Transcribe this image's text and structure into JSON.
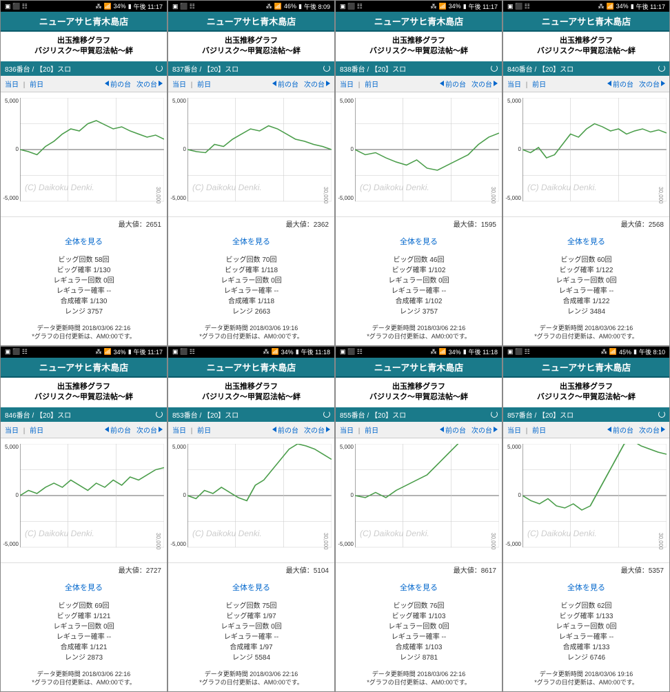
{
  "common": {
    "store_name": "ニューアサヒ青木島店",
    "graph_title": "出玉推移グラフ",
    "game_name": "バジリスク〜甲賀忍法帖〜絆",
    "slot_label": "【20】スロ",
    "today": "当日",
    "yesterday": "前日",
    "prev_machine": "前の台",
    "next_machine": "次の台",
    "max_label": "最大値：",
    "view_all": "全体を見る",
    "big_count_label": "ビッグ回数",
    "big_rate_label": "ビッグ確率",
    "reg_count_label": "レギュラー回数",
    "reg_rate_label": "レギュラー確率",
    "combined_label": "合成確率",
    "range_label": "レンジ",
    "update_label": "データ更新時間",
    "note": "*グラフの日付更新は、AM0:00です。",
    "watermark": "(C) Daikoku Denki.",
    "y_high": "5,000",
    "y_zero": "0",
    "y_low": "-5,000",
    "x_label": "30,000",
    "data_color": "#4a9d4a",
    "grid_color": "#cccccc",
    "axis_color": "#666666"
  },
  "panels": [
    {
      "status_time": "午後 11:17",
      "battery": "34%",
      "machine_no": "836番台",
      "max_value": "2651",
      "big_count": "58回",
      "big_rate": "1/130",
      "reg_count": "0回",
      "reg_rate": "--",
      "combined": "1/130",
      "range": "3757",
      "update_time": "2018/03/06 22:16",
      "chart_data": [
        0,
        -2,
        -5,
        3,
        8,
        15,
        20,
        18,
        25,
        28,
        24,
        20,
        22,
        18,
        15,
        12,
        14,
        10
      ]
    },
    {
      "status_time": "午後 8:09",
      "battery": "46%",
      "machine_no": "837番台",
      "max_value": "2362",
      "big_count": "70回",
      "big_rate": "1/118",
      "reg_count": "0回",
      "reg_rate": "--",
      "combined": "1/118",
      "range": "2663",
      "update_time": "2018/03/06 19:16",
      "chart_data": [
        0,
        -2,
        -3,
        5,
        3,
        10,
        15,
        20,
        18,
        23,
        20,
        15,
        10,
        8,
        5,
        3,
        0
      ]
    },
    {
      "status_time": "午後 11:17",
      "battery": "34%",
      "machine_no": "838番台",
      "max_value": "1595",
      "big_count": "46回",
      "big_rate": "1/102",
      "reg_count": "0回",
      "reg_rate": "--",
      "combined": "1/102",
      "range": "3757",
      "update_time": "2018/03/06 22:16",
      "chart_data": [
        0,
        -5,
        -3,
        -8,
        -12,
        -15,
        -10,
        -18,
        -20,
        -15,
        -10,
        -5,
        5,
        12,
        16
      ]
    },
    {
      "status_time": "午後 11:17",
      "battery": "34%",
      "machine_no": "840番台",
      "max_value": "2568",
      "big_count": "60回",
      "big_rate": "1/122",
      "reg_count": "0回",
      "reg_rate": "--",
      "combined": "1/122",
      "range": "3484",
      "update_time": "2018/03/06 22:16",
      "chart_data": [
        0,
        -3,
        2,
        -8,
        -5,
        5,
        15,
        12,
        20,
        25,
        22,
        18,
        20,
        15,
        18,
        20,
        17,
        19,
        16
      ]
    },
    {
      "status_time": "午後 11:17",
      "battery": "34%",
      "machine_no": "846番台",
      "max_value": "2727",
      "big_count": "69回",
      "big_rate": "1/121",
      "reg_count": "0回",
      "reg_rate": "--",
      "combined": "1/121",
      "range": "2873",
      "update_time": "2018/03/06 22:16",
      "chart_data": [
        0,
        5,
        2,
        8,
        12,
        8,
        15,
        10,
        5,
        12,
        8,
        15,
        10,
        18,
        15,
        20,
        25,
        27
      ]
    },
    {
      "status_time": "午後 11:18",
      "battery": "34%",
      "machine_no": "853番台",
      "max_value": "5104",
      "big_count": "75回",
      "big_rate": "1/97",
      "reg_count": "0回",
      "reg_rate": "--",
      "combined": "1/97",
      "range": "5584",
      "update_time": "2018/03/06 22:16",
      "chart_data": [
        0,
        -3,
        5,
        2,
        8,
        3,
        -2,
        -5,
        10,
        15,
        25,
        35,
        45,
        50,
        48,
        45,
        40,
        35
      ]
    },
    {
      "status_time": "午後 11:18",
      "battery": "34%",
      "machine_no": "855番台",
      "max_value": "8617",
      "big_count": "76回",
      "big_rate": "1/103",
      "reg_count": "0回",
      "reg_rate": "--",
      "combined": "1/103",
      "range": "8781",
      "update_time": "2018/03/06 22:16",
      "chart_data": [
        0,
        -2,
        3,
        -2,
        5,
        10,
        15,
        20,
        30,
        40,
        50,
        60,
        70,
        80,
        86
      ]
    },
    {
      "status_time": "午後 8:10",
      "battery": "45%",
      "machine_no": "857番台",
      "max_value": "5357",
      "big_count": "62回",
      "big_rate": "1/133",
      "reg_count": "0回",
      "reg_rate": "--",
      "combined": "1/133",
      "range": "6746",
      "update_time": "2018/03/06 19:16",
      "chart_data": [
        0,
        -5,
        -8,
        -3,
        -10,
        -12,
        -8,
        -14,
        -10,
        5,
        20,
        35,
        50,
        53,
        48,
        45,
        42,
        40
      ]
    }
  ]
}
